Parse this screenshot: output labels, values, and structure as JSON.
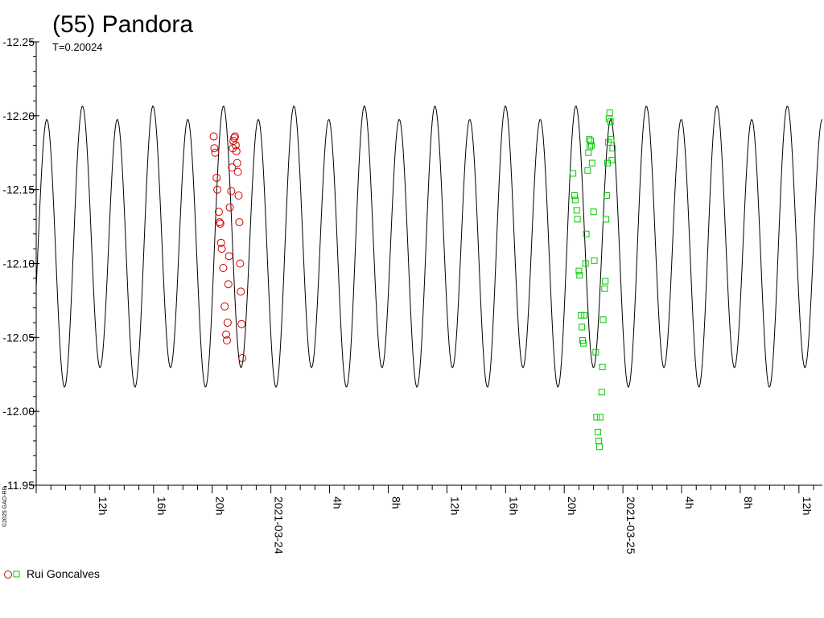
{
  "chart_data": {
    "type": "scatter",
    "title": "(55) Pandora",
    "subtitle": "T=0.20024",
    "copyright": "©2025 GAO-RB",
    "y_axis": {
      "inverted": true,
      "ylim": [
        -12.25,
        -11.95
      ],
      "tick_labels": [
        "-12.25",
        "-12.20",
        "-12.15",
        "-12.10",
        "-12.05",
        "-12.00",
        "-11.95"
      ],
      "tick_values": [
        -12.25,
        -12.2,
        -12.15,
        -12.1,
        -12.05,
        -12.0,
        -11.95
      ]
    },
    "x_axis": {
      "unit": "hours since 2021-03-23 08:00",
      "xlim": [
        0,
        27.1
      ],
      "major_labels": [
        {
          "x": 4,
          "label": "12h"
        },
        {
          "x": 8,
          "label": "16h"
        },
        {
          "x": 12,
          "label": "20h"
        },
        {
          "x": 16,
          "label": "2021-03-24"
        },
        {
          "x": 20,
          "label": "4h"
        },
        {
          "x": 24,
          "label": "8h"
        },
        {
          "x": 28,
          "label": "12h"
        },
        {
          "x": 32,
          "label": "16h"
        },
        {
          "x": 36,
          "label": "20h"
        },
        {
          "x": 40,
          "label": "2021-03-25"
        },
        {
          "x": 44,
          "label": "4h"
        },
        {
          "x": 48,
          "label": "8h"
        },
        {
          "x": 52,
          "label": "12h"
        }
      ],
      "major_labels_scale": 0.5
    },
    "model_curve": {
      "period_hours": 4.8058,
      "phase_hours": 1.48,
      "mean": -12.1125,
      "amp1": 0.008,
      "amp2": 0.0895,
      "phi1": 0.0,
      "phi2": -1.2
    },
    "series": [
      {
        "name": "Rui Goncalves",
        "color": "#cc0000",
        "marker": "circle",
        "points": [
          [
            12.1,
            -12.186
          ],
          [
            12.15,
            -12.178
          ],
          [
            12.2,
            -12.175
          ],
          [
            12.3,
            -12.158
          ],
          [
            12.35,
            -12.15
          ],
          [
            12.45,
            -12.135
          ],
          [
            12.5,
            -12.128
          ],
          [
            12.55,
            -12.127
          ],
          [
            12.6,
            -12.114
          ],
          [
            12.65,
            -12.11
          ],
          [
            12.75,
            -12.097
          ],
          [
            12.85,
            -12.071
          ],
          [
            12.95,
            -12.052
          ],
          [
            13.0,
            -12.048
          ],
          [
            13.05,
            -12.06
          ],
          [
            13.1,
            -12.086
          ],
          [
            13.15,
            -12.105
          ],
          [
            13.2,
            -12.138
          ],
          [
            13.3,
            -12.149
          ],
          [
            13.35,
            -12.165
          ],
          [
            13.4,
            -12.178
          ],
          [
            13.45,
            -12.183
          ],
          [
            13.5,
            -12.185
          ],
          [
            13.55,
            -12.186
          ],
          [
            13.6,
            -12.18
          ],
          [
            13.65,
            -12.176
          ],
          [
            13.7,
            -12.168
          ],
          [
            13.75,
            -12.162
          ],
          [
            13.8,
            -12.146
          ],
          [
            13.85,
            -12.128
          ],
          [
            13.9,
            -12.1
          ],
          [
            13.95,
            -12.081
          ],
          [
            14.0,
            -12.059
          ],
          [
            14.05,
            -12.036
          ]
        ]
      },
      {
        "name": "Rui Goncalves",
        "color": "#00cc00",
        "marker": "square",
        "points": [
          [
            36.6,
            -12.161
          ],
          [
            36.7,
            -12.146
          ],
          [
            36.75,
            -12.143
          ],
          [
            36.85,
            -12.136
          ],
          [
            36.9,
            -12.13
          ],
          [
            37.0,
            -12.095
          ],
          [
            37.05,
            -12.092
          ],
          [
            37.15,
            -12.065
          ],
          [
            37.2,
            -12.057
          ],
          [
            37.25,
            -12.048
          ],
          [
            37.3,
            -12.046
          ],
          [
            37.35,
            -12.065
          ],
          [
            37.45,
            -12.1
          ],
          [
            37.5,
            -12.12
          ],
          [
            37.6,
            -12.163
          ],
          [
            37.65,
            -12.175
          ],
          [
            37.7,
            -12.184
          ],
          [
            37.75,
            -12.179
          ],
          [
            37.8,
            -12.183
          ],
          [
            37.85,
            -12.18
          ],
          [
            37.9,
            -12.168
          ],
          [
            38.0,
            -12.135
          ],
          [
            38.05,
            -12.102
          ],
          [
            38.15,
            -12.04
          ],
          [
            38.2,
            -11.996
          ],
          [
            38.3,
            -11.986
          ],
          [
            38.35,
            -11.98
          ],
          [
            38.4,
            -11.976
          ],
          [
            38.45,
            -11.996
          ],
          [
            38.55,
            -12.013
          ],
          [
            38.6,
            -12.03
          ],
          [
            38.65,
            -12.062
          ],
          [
            38.75,
            -12.083
          ],
          [
            38.8,
            -12.088
          ],
          [
            38.85,
            -12.13
          ],
          [
            38.9,
            -12.146
          ],
          [
            38.95,
            -12.168
          ],
          [
            39.0,
            -12.182
          ],
          [
            39.05,
            -12.198
          ],
          [
            39.1,
            -12.202
          ],
          [
            39.15,
            -12.196
          ],
          [
            39.2,
            -12.184
          ],
          [
            39.25,
            -12.17
          ],
          [
            39.3,
            -12.178
          ]
        ]
      }
    ],
    "legend": {
      "placement": "bottom-left",
      "label": "Rui Goncalves"
    }
  }
}
